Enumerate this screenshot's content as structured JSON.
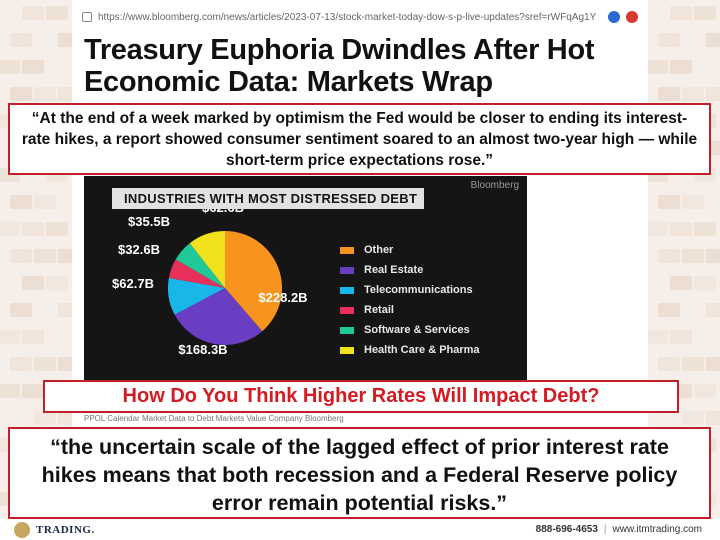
{
  "browser": {
    "url": "https://www.bloomberg.com/news/articles/2023-07-13/stock-market-today-dow-s-p-live-updates?sref=rWFqAg1Y"
  },
  "article": {
    "headline": "Treasury Euphoria Dwindles After Hot Economic Data: Markets Wrap",
    "caption": "PPOL Calendar Market Data to Debt Markets Value Company Bloomberg"
  },
  "quotes": {
    "top": "“At the end of a week marked by optimism the Fed would be closer to ending its interest-rate hikes, a report showed consumer sentiment soared to an almost two-year high — while short-term price expectations rose.”",
    "bottom": "“the uncertain scale of the lagged effect of prior interest rate hikes means that both recession and a Federal Reserve policy error remain potential risks.”"
  },
  "question": "How Do You Think Higher Rates Will Impact Debt?",
  "chart_data": {
    "type": "pie",
    "title": "INDUSTRIES WITH MOST DISTRESSED DEBT",
    "brand": "Bloomberg",
    "unit": "$B",
    "slices": [
      {
        "name": "Other",
        "value": 228.2,
        "label": "$228.2B",
        "color": "#f7941d"
      },
      {
        "name": "Real Estate",
        "value": 168.3,
        "label": "$168.3B",
        "color": "#6a3ec2"
      },
      {
        "name": "Telecommunications",
        "value": 62.7,
        "label": "$62.7B",
        "color": "#19b6ea"
      },
      {
        "name": "Retail",
        "value": 32.6,
        "label": "$32.6B",
        "color": "#e8305a"
      },
      {
        "name": "Software & Services",
        "value": 35.5,
        "label": "$35.5B",
        "color": "#20c997"
      },
      {
        "name": "Health Care & Pharma",
        "value": 62.6,
        "label": "$62.6B",
        "color": "#f2e11d"
      }
    ],
    "legend_placement": "right"
  },
  "footer": {
    "logo_text": "TRADING.",
    "phone": "888-696-4653",
    "separator": "|",
    "website": "www.itmtrading.com"
  }
}
